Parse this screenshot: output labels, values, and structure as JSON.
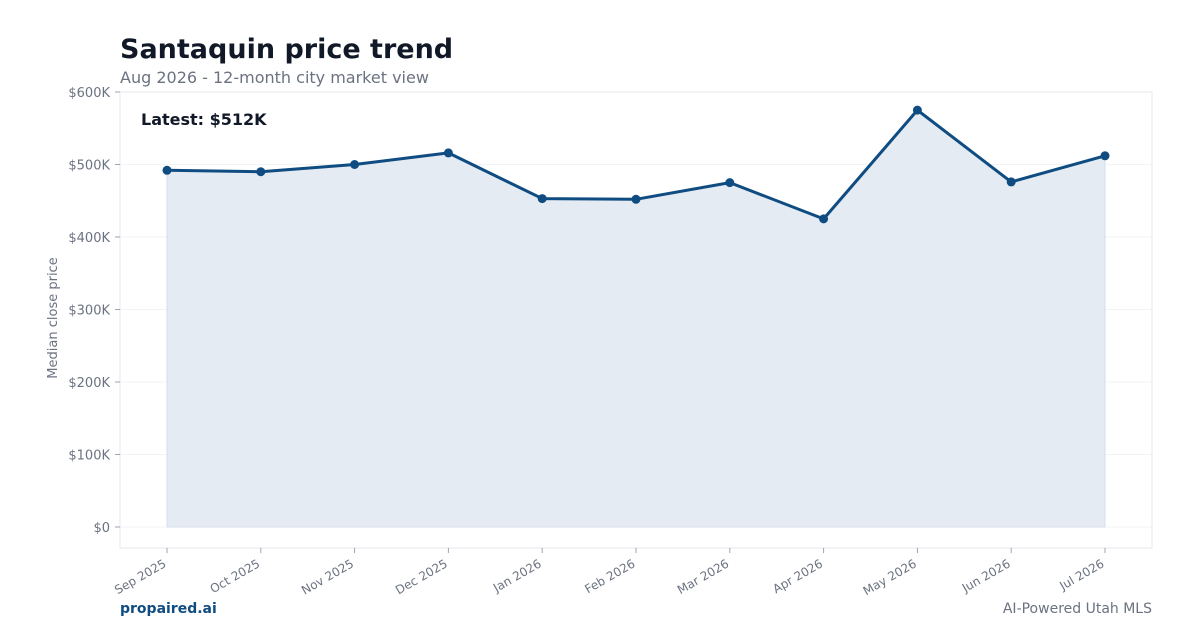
{
  "title": "Santaquin price trend",
  "subtitle": "Aug 2026 - 12-month city market view",
  "brand": "propaired.ai",
  "tagline": "AI-Powered Utah MLS",
  "colors": {
    "line": "#0f4c81",
    "area": "#e5ebf3",
    "grid": "#f1f3f5",
    "text": "#111827",
    "muted": "#6b7280"
  },
  "chart_data": {
    "type": "area",
    "categories": [
      "Sep 2025",
      "Oct 2025",
      "Nov 2025",
      "Dec 2025",
      "Jan 2026",
      "Feb 2026",
      "Mar 2026",
      "Apr 2026",
      "May 2026",
      "Jun 2026",
      "Jul 2026"
    ],
    "values": [
      492000,
      490000,
      500000,
      516000,
      453000,
      452000,
      475000,
      425000,
      575000,
      476000,
      512000
    ],
    "ylabel": "Median close price",
    "xlabel": "",
    "ylim": [
      0,
      600000
    ],
    "yticks": [
      0,
      100000,
      200000,
      300000,
      400000,
      500000,
      600000
    ],
    "ytick_labels": [
      "$0",
      "$100K",
      "$200K",
      "$300K",
      "$400K",
      "$500K",
      "$600K"
    ],
    "annotation": "Latest: $512K",
    "grid": true
  }
}
